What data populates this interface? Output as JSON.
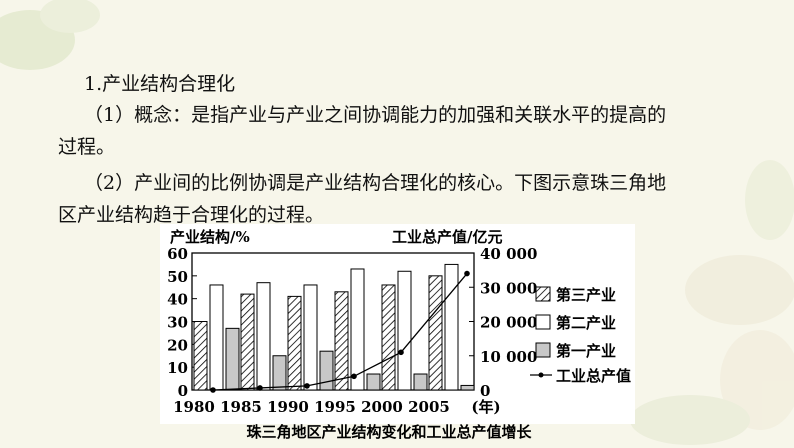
{
  "heading": "1.产业结构合理化",
  "para1_line1": "（1）概念：是指产业与产业之间协调能力的加强和关联水平的提高的",
  "para1_line2": "过程。",
  "para2_line1": "（2）产业间的比例协调是产业结构合理化的核心。下图示意珠三角地",
  "para2_line2": "区产业结构趋于合理化的过程。",
  "chart_data": {
    "type": "bar",
    "title": "珠三角地区产业结构变化和工业总产值增长",
    "left_axis_label": "产业结构/%",
    "right_axis_label": "工业总产值/亿元",
    "x_unit": "(年)",
    "categories": [
      "1980",
      "1985",
      "1990",
      "1995",
      "2000",
      "2005"
    ],
    "left_ticks": [
      "60",
      "50",
      "40",
      "30",
      "20",
      "10",
      "0"
    ],
    "right_ticks": [
      "40 000",
      "30 000",
      "20 000",
      "10 000",
      "0"
    ],
    "ylim_left": [
      0,
      60
    ],
    "ylim_right": [
      0,
      40000
    ],
    "series": [
      {
        "name": "第三产业",
        "values": [
          30,
          42,
          41,
          43,
          46,
          50
        ],
        "pattern": "hatched"
      },
      {
        "name": "第二产业",
        "values": [
          46,
          47,
          46,
          53,
          52,
          55
        ],
        "pattern": "white"
      },
      {
        "name": "第一产业",
        "values": [
          27,
          15,
          17,
          7,
          7,
          2
        ],
        "pattern": "gray"
      }
    ],
    "line_series": {
      "name": "工业总产值",
      "values": [
        0,
        600,
        1200,
        4000,
        11000,
        34000
      ]
    }
  }
}
